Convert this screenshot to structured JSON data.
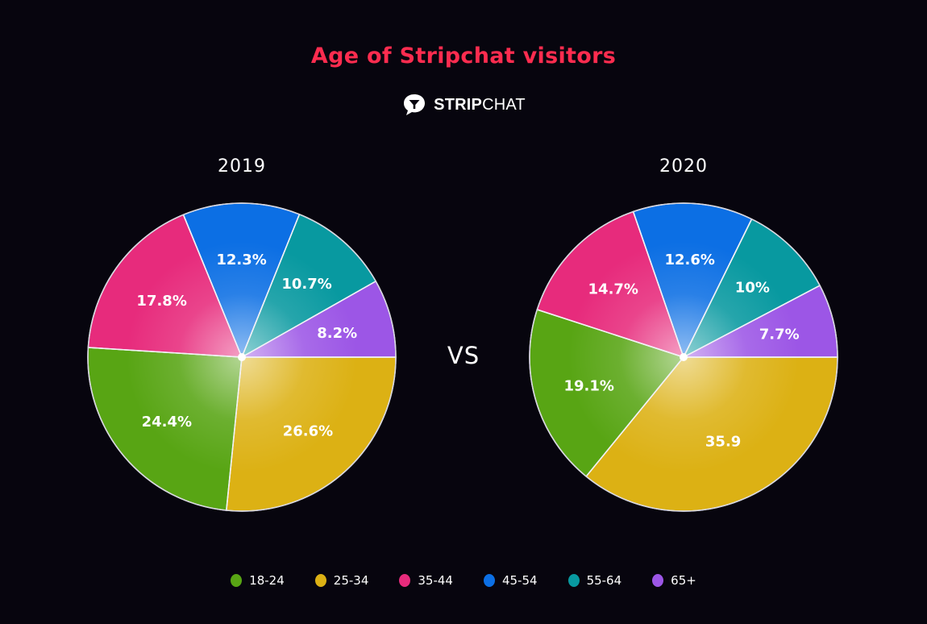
{
  "title": "Age of Stripchat visitors",
  "brand": {
    "bold": "STRIP",
    "regular": "CHAT",
    "icon": "chat-bubble-cocktail-glass-icon"
  },
  "vs_label": "VS",
  "legend": [
    {
      "label": "18-24",
      "color": "#58a514"
    },
    {
      "label": "25-34",
      "color": "#dcb114"
    },
    {
      "label": "35-44",
      "color": "#e72b7c"
    },
    {
      "label": "45-54",
      "color": "#0c6fe4"
    },
    {
      "label": "55-64",
      "color": "#0899a0"
    },
    {
      "label": "65+",
      "color": "#9c56e6"
    }
  ],
  "chart_data": [
    {
      "type": "pie",
      "title": "2019",
      "categories": [
        "25-34",
        "18-24",
        "35-44",
        "45-54",
        "55-64",
        "65+"
      ],
      "values": [
        26.6,
        24.4,
        17.8,
        12.3,
        10.7,
        8.2
      ],
      "labels": [
        "26.6%",
        "24.4%",
        "17.8%",
        "12.3%",
        "10.7%",
        "8.2%"
      ],
      "start": "3 o'clock, clockwise",
      "legend_position": "bottom"
    },
    {
      "type": "pie",
      "title": "2020",
      "categories": [
        "25-34",
        "18-24",
        "35-44",
        "45-54",
        "55-64",
        "65+"
      ],
      "values": [
        35.9,
        19.1,
        14.7,
        12.6,
        10.0,
        7.7
      ],
      "labels": [
        "35.9",
        "19.1%",
        "14.7%",
        "12.6%",
        "10%",
        "7.7%"
      ],
      "start": "3 o'clock, clockwise",
      "legend_position": "bottom"
    }
  ]
}
